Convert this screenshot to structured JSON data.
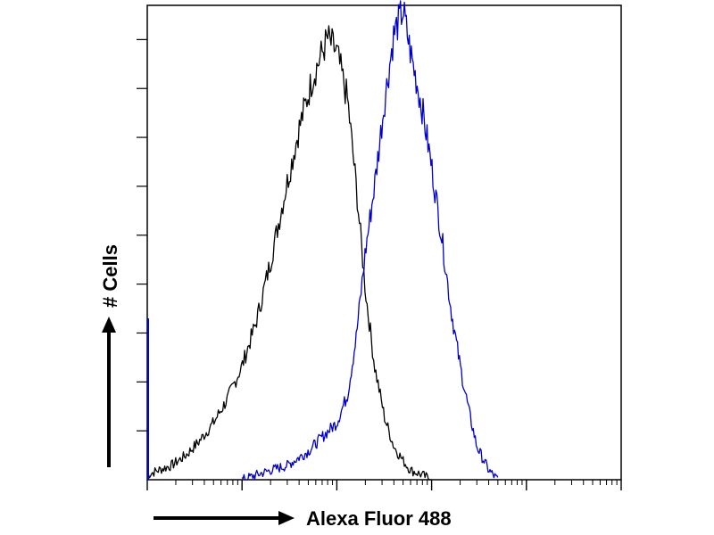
{
  "chart_data": {
    "type": "line",
    "subtype": "flow-cytometry-histogram",
    "title": "",
    "xlabel": "Alexa Fluor 488",
    "ylabel": "# Cells",
    "x_scale": "log",
    "xlim": [
      1,
      100000
    ],
    "ylim": [
      0,
      100
    ],
    "grid": false,
    "legend": "none",
    "series": [
      {
        "color": "#000000",
        "x": [
          1.0,
          1.3,
          1.8,
          2.5,
          3.5,
          5,
          7,
          10,
          14,
          20,
          28,
          40,
          56,
          80,
          100,
          130,
          160,
          200,
          250,
          320,
          400,
          500,
          600,
          800,
          1000
        ],
        "y": [
          1,
          2,
          3,
          5,
          8,
          12,
          17,
          24,
          33,
          46,
          60,
          74,
          85,
          93,
          90,
          80,
          62,
          40,
          24,
          13,
          7,
          4,
          2,
          1,
          0
        ]
      },
      {
        "color": "#0000cc",
        "x": [
          10,
          20,
          30,
          50,
          70,
          100,
          130,
          160,
          200,
          250,
          320,
          400,
          500,
          600,
          800,
          1000,
          1300,
          1600,
          2000,
          2500,
          3000,
          4000,
          5000
        ],
        "y": [
          0,
          2,
          3,
          6,
          9,
          12,
          18,
          30,
          48,
          62,
          80,
          94,
          99,
          90,
          78,
          66,
          50,
          36,
          24,
          14,
          7,
          2,
          0
        ]
      }
    ]
  }
}
